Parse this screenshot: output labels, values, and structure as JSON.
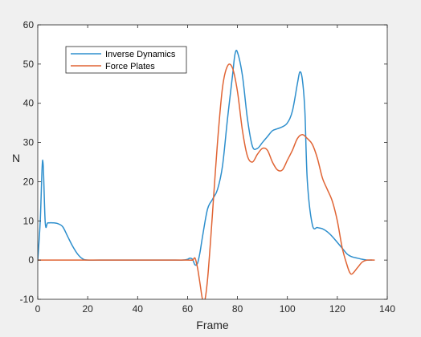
{
  "chart_data": {
    "type": "line",
    "title": "",
    "xlabel": "Frame",
    "ylabel": "N",
    "xlim": [
      0,
      140
    ],
    "ylim": [
      -10,
      60
    ],
    "xticks": [
      0,
      20,
      40,
      60,
      80,
      100,
      120,
      140
    ],
    "yticks": [
      -10,
      0,
      10,
      20,
      30,
      40,
      50,
      60
    ],
    "grid": false,
    "legend_position": "top-left",
    "series": [
      {
        "name": "Inverse Dynamics",
        "color": "#2e8fcd",
        "x": [
          0,
          1,
          2,
          3,
          4,
          6,
          8,
          10,
          12,
          14,
          16,
          18,
          20,
          25,
          40,
          55,
          58,
          60,
          61,
          62,
          63,
          64,
          65,
          66,
          68,
          70,
          72,
          74,
          76,
          78,
          79,
          80,
          82,
          84,
          86,
          88,
          90,
          92,
          94,
          96,
          98,
          100,
          102,
          104,
          105,
          106,
          107,
          108,
          110,
          112,
          114,
          116,
          118,
          120,
          122,
          124,
          126,
          128,
          130,
          132,
          134
        ],
        "y": [
          0,
          10,
          25.5,
          9.5,
          9.5,
          9.5,
          9.3,
          8.5,
          6,
          3.5,
          1.5,
          0.3,
          0,
          0,
          0,
          0,
          0,
          0.2,
          0.5,
          0.2,
          -1.2,
          -0.8,
          2,
          6,
          13,
          15.5,
          18,
          24,
          36,
          47,
          52.5,
          53,
          47,
          36,
          29,
          28.5,
          30,
          31.5,
          33,
          33.5,
          34,
          35,
          38,
          45,
          48,
          46,
          38,
          20,
          9,
          8.3,
          8,
          7.2,
          6,
          4.5,
          3,
          1.5,
          0.8,
          0.5,
          0.2,
          0,
          0
        ]
      },
      {
        "name": "Force Plates",
        "color": "#e06434",
        "x": [
          0,
          10,
          20,
          40,
          60,
          62,
          63,
          64,
          65,
          66,
          67,
          68,
          69,
          70,
          72,
          74,
          76,
          78,
          80,
          82,
          84,
          86,
          88,
          90,
          92,
          94,
          96,
          98,
          100,
          102,
          104,
          106,
          108,
          110,
          112,
          114,
          116,
          118,
          120,
          122,
          124,
          125,
          126,
          128,
          130,
          132,
          135
        ],
        "y": [
          0,
          0,
          0,
          0,
          0,
          0,
          0.5,
          -2,
          -6,
          -10,
          -10,
          -5,
          3,
          12,
          30,
          44,
          49.5,
          49,
          43,
          33,
          26.5,
          25,
          27,
          28.5,
          28,
          25,
          23,
          23,
          25.5,
          28,
          31,
          32,
          31,
          29.5,
          26,
          21,
          18,
          15,
          10,
          3,
          -1.5,
          -3.2,
          -3.5,
          -2,
          -0.5,
          0,
          0
        ]
      }
    ]
  }
}
